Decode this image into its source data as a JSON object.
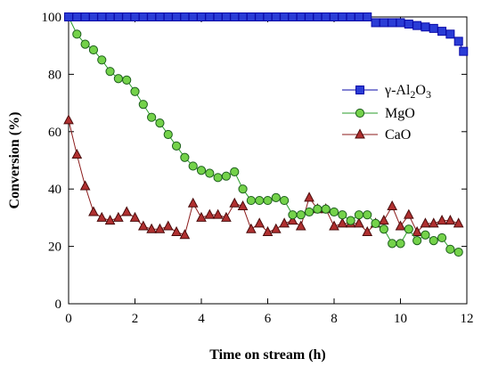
{
  "chart_data": {
    "type": "line",
    "title": "",
    "xlabel": "Time on stream (h)",
    "ylabel": "Conversion (%)",
    "xlim": [
      0,
      12
    ],
    "ylim": [
      0,
      100
    ],
    "xticks": [
      0,
      2,
      4,
      6,
      8,
      10,
      12
    ],
    "yticks": [
      0,
      20,
      40,
      60,
      80,
      100
    ],
    "grid": false,
    "legend_position": "right-top",
    "series": [
      {
        "name": "γ-Al2O3",
        "legend": {
          "pre": "γ-Al",
          "sub1": "2",
          "mid": "O",
          "sub2": "3"
        },
        "color": "#0a0aa8",
        "fill": "#2a3cd6",
        "marker": "square",
        "x": [
          0,
          0.25,
          0.5,
          0.75,
          1,
          1.25,
          1.5,
          1.75,
          2,
          2.25,
          2.5,
          2.75,
          3,
          3.25,
          3.5,
          3.75,
          4,
          4.25,
          4.5,
          4.75,
          5,
          5.25,
          5.5,
          5.75,
          6,
          6.25,
          6.5,
          6.75,
          7,
          7.25,
          7.5,
          7.75,
          8,
          8.25,
          8.5,
          8.75,
          9,
          9.25,
          9.5,
          9.75,
          10,
          10.25,
          10.5,
          10.75,
          11,
          11.25,
          11.5,
          11.75,
          11.9
        ],
        "values": [
          100,
          100,
          100,
          100,
          100,
          100,
          100,
          100,
          100,
          100,
          100,
          100,
          100,
          100,
          100,
          100,
          100,
          100,
          100,
          100,
          100,
          100,
          100,
          100,
          100,
          100,
          100,
          100,
          100,
          100,
          100,
          100,
          100,
          100,
          100,
          100,
          100,
          98,
          98,
          98,
          98,
          97.5,
          97,
          96.5,
          96,
          95,
          94,
          91.5,
          88
        ]
      },
      {
        "name": "MgO",
        "color": "#2a9d2a",
        "fill": "#74d24a",
        "marker": "circle",
        "x": [
          0,
          0.25,
          0.5,
          0.75,
          1,
          1.25,
          1.5,
          1.75,
          2,
          2.25,
          2.5,
          2.75,
          3,
          3.25,
          3.5,
          3.75,
          4,
          4.25,
          4.5,
          4.75,
          5,
          5.25,
          5.5,
          5.75,
          6,
          6.25,
          6.5,
          6.75,
          7,
          7.25,
          7.5,
          7.75,
          8,
          8.25,
          8.5,
          8.75,
          9,
          9.25,
          9.5,
          9.75,
          10,
          10.25,
          10.5,
          10.75,
          11,
          11.25,
          11.5,
          11.75
        ],
        "values": [
          100,
          94,
          90.5,
          88.5,
          85,
          81,
          78.5,
          78,
          74,
          69.5,
          65,
          63,
          59,
          55,
          51,
          48,
          46.5,
          45.5,
          44,
          44.5,
          46,
          40,
          36,
          36,
          36,
          37,
          36,
          31,
          31,
          32,
          33,
          33,
          32,
          31,
          29,
          31,
          31,
          28,
          26,
          21,
          21,
          26,
          22,
          24,
          22,
          23,
          19,
          18
        ]
      },
      {
        "name": "CaO",
        "color": "#8b1a1a",
        "fill": "#b03030",
        "marker": "triangle",
        "x": [
          0,
          0.25,
          0.5,
          0.75,
          1,
          1.25,
          1.5,
          1.75,
          2,
          2.25,
          2.5,
          2.75,
          3,
          3.25,
          3.5,
          3.75,
          4,
          4.25,
          4.5,
          4.75,
          5,
          5.25,
          5.5,
          5.75,
          6,
          6.25,
          6.5,
          6.75,
          7,
          7.25,
          7.5,
          7.75,
          8,
          8.25,
          8.5,
          8.75,
          9,
          9.25,
          9.5,
          9.75,
          10,
          10.25,
          10.5,
          10.75,
          11,
          11.25,
          11.5,
          11.75
        ],
        "values": [
          64,
          52,
          41,
          32,
          30,
          29,
          30,
          32,
          30,
          27,
          26,
          26,
          27,
          25,
          24,
          35,
          30,
          31,
          31,
          30,
          35,
          34,
          26,
          28,
          25,
          26,
          28,
          29,
          27,
          37,
          33,
          33,
          27,
          28,
          28,
          28,
          25,
          28,
          29,
          34,
          27,
          31,
          25,
          28,
          28,
          29,
          29,
          28
        ]
      }
    ]
  }
}
